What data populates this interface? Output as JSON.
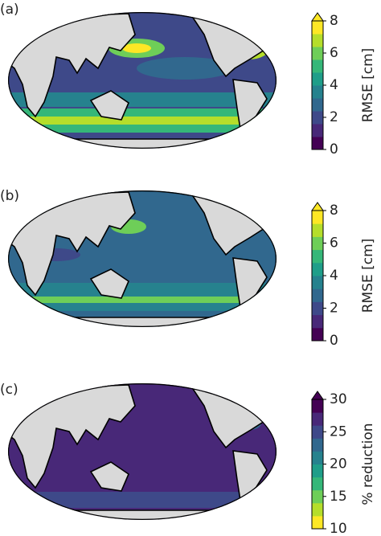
{
  "panels": [
    {
      "label": "(a)",
      "colorbar": {
        "label": "RMSE [cm]",
        "lim": [
          0,
          8
        ],
        "ticks": [
          0,
          2,
          4,
          6,
          8
        ],
        "extend": "max",
        "colors": [
          "#440154",
          "#482878",
          "#3e4989",
          "#31688e",
          "#26828e",
          "#1f9e89",
          "#35b779",
          "#6ece58",
          "#b5de2b",
          "#fde725"
        ],
        "extend_color": "#fde725"
      }
    },
    {
      "label": "(b)",
      "colorbar": {
        "label": "RMSE [cm]",
        "lim": [
          0,
          8
        ],
        "ticks": [
          0,
          2,
          4,
          6,
          8
        ],
        "extend": "max",
        "colors": [
          "#440154",
          "#482878",
          "#3e4989",
          "#31688e",
          "#26828e",
          "#1f9e89",
          "#35b779",
          "#6ece58",
          "#b5de2b",
          "#fde725"
        ],
        "extend_color": "#fde725"
      }
    },
    {
      "label": "(c)",
      "colorbar": {
        "label": "% reduction",
        "lim": [
          10,
          30
        ],
        "ticks": [
          10,
          15,
          20,
          25,
          30
        ],
        "extend": "max",
        "colors": [
          "#fde725",
          "#b5de2b",
          "#6ece58",
          "#35b779",
          "#1f9e89",
          "#26828e",
          "#31688e",
          "#3e4989",
          "#482878",
          "#440154"
        ],
        "extend_color": "#440154"
      }
    }
  ]
}
